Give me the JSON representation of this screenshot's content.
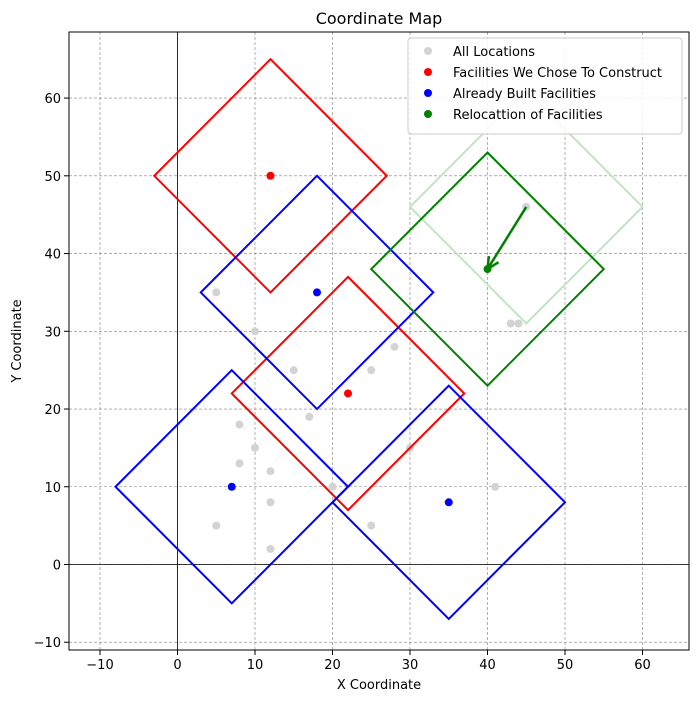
{
  "chart_data": {
    "type": "scatter",
    "title": "Coordinate Map",
    "xlabel": "X Coordinate",
    "ylabel": "Y Coordinate",
    "xlim": [
      -14,
      66
    ],
    "ylim": [
      -11,
      68.5
    ],
    "xticks": [
      -10,
      0,
      10,
      20,
      30,
      40,
      50,
      60
    ],
    "yticks": [
      -10,
      0,
      10,
      20,
      30,
      40,
      50,
      60
    ],
    "grid": true,
    "grid_style": "dashed",
    "zero_lines": true,
    "legend_position": "top-right",
    "colors": {
      "all": "#d3d3d3",
      "construct": "#ff0000",
      "built": "#0000ff",
      "relocation": "#008000",
      "relocation_faded": "#c3e3c3"
    },
    "series": [
      {
        "name": "All Locations",
        "color_key": "all",
        "points": [
          [
            5,
            35
          ],
          [
            10,
            30
          ],
          [
            15,
            25
          ],
          [
            17,
            19
          ],
          [
            8,
            18
          ],
          [
            10,
            15
          ],
          [
            8,
            13
          ],
          [
            12,
            12
          ],
          [
            12,
            8
          ],
          [
            5,
            5
          ],
          [
            12,
            2
          ],
          [
            20,
            10
          ],
          [
            25,
            25
          ],
          [
            28,
            28
          ],
          [
            25,
            5
          ],
          [
            30,
            15
          ],
          [
            41,
            10
          ],
          [
            43,
            31
          ],
          [
            44,
            31
          ],
          [
            45,
            46
          ]
        ]
      },
      {
        "name": "Facilities We Chose To Construct",
        "color_key": "construct",
        "points": [
          [
            12,
            50
          ],
          [
            22,
            22
          ]
        ]
      },
      {
        "name": "Already Built Facilities",
        "color_key": "built",
        "points": [
          [
            18,
            35
          ],
          [
            7,
            10
          ],
          [
            35,
            8
          ]
        ]
      },
      {
        "name": "Relocattion of Facilities",
        "color_key": "relocation",
        "points": [
          [
            40,
            38
          ]
        ]
      }
    ],
    "coverage_diamonds": [
      {
        "center": [
          12,
          50
        ],
        "radius": 15,
        "color_key": "construct"
      },
      {
        "center": [
          22,
          22
        ],
        "radius": 15,
        "color_key": "construct"
      },
      {
        "center": [
          18,
          35
        ],
        "radius": 15,
        "color_key": "built"
      },
      {
        "center": [
          7,
          10
        ],
        "radius": 15,
        "color_key": "built"
      },
      {
        "center": [
          35,
          8
        ],
        "radius": 15,
        "color_key": "built"
      },
      {
        "center": [
          45,
          46
        ],
        "radius": 15,
        "color_key": "relocation_faded"
      },
      {
        "center": [
          40,
          38
        ],
        "radius": 15,
        "color_key": "relocation"
      }
    ],
    "arrows": [
      {
        "from": [
          45,
          46
        ],
        "to": [
          40,
          38
        ],
        "color_key": "relocation"
      }
    ]
  }
}
